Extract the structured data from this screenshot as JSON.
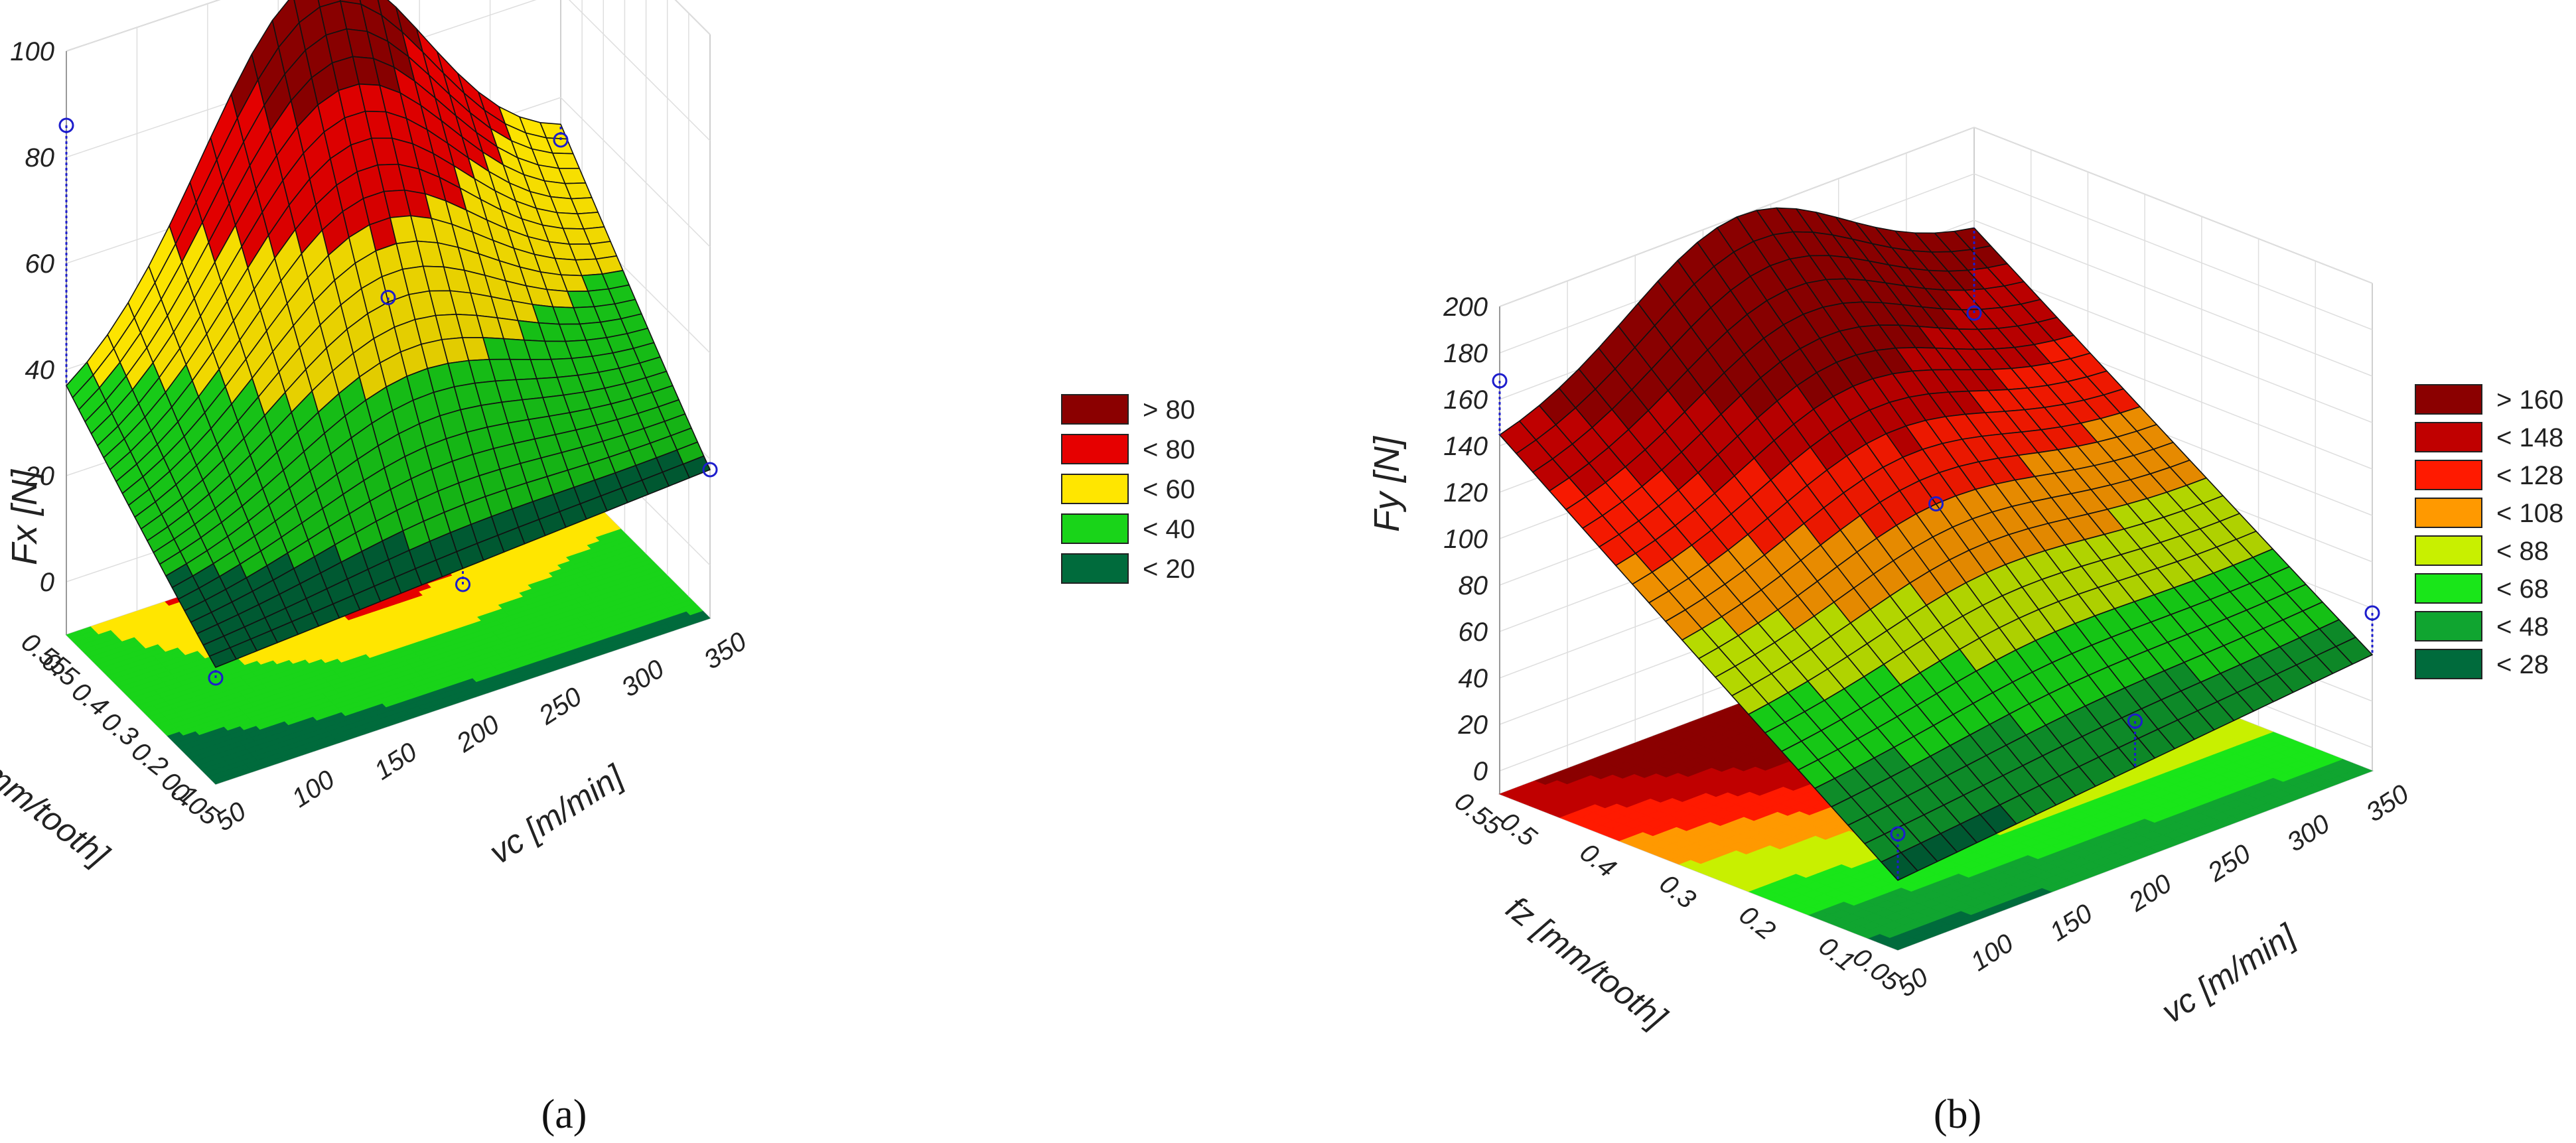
{
  "chart_data": [
    {
      "type": "surface3d",
      "panel_label": "(a)",
      "zlabel": "Fx [N]",
      "xlabel": "vc [m/min]",
      "ylabel": "fz [mm/tooth]",
      "x_ticks": [
        "50",
        "100",
        "150",
        "200",
        "250",
        "300",
        "350"
      ],
      "y_ticks": [
        "0.05",
        "0.1",
        "0.2",
        "0.3",
        "0.4",
        "0.5",
        "0.55"
      ],
      "z_ticks": [
        "0",
        "20",
        "40",
        "60",
        "80",
        "100"
      ],
      "xlim": [
        50,
        350
      ],
      "ylim": [
        0.05,
        0.55
      ],
      "zlim": [
        -10,
        100
      ],
      "legend": [
        {
          "label": "> 80",
          "color": "#8b0000"
        },
        {
          "label": "< 80",
          "color": "#e60000"
        },
        {
          "label": "< 60",
          "color": "#ffe600"
        },
        {
          "label": "< 40",
          "color": "#19d419"
        },
        {
          "label": "< 20",
          "color": "#006b3c"
        }
      ],
      "thresholds": [
        20,
        40,
        60,
        80
      ],
      "surface_corners": {
        "vc50_fz0.05": 12,
        "vc350_fz0.05": 18,
        "vc50_fz0.55": 32,
        "vc350_fz0.55": 50,
        "peak_vc200_fz0.55": 98
      },
      "observed_points": [
        {
          "vc": 50,
          "fz": 0.55,
          "F": 86
        },
        {
          "vc": 200,
          "fz": 0.3,
          "F": 52
        },
        {
          "vc": 350,
          "fz": 0.55,
          "F": 52
        },
        {
          "vc": 50,
          "fz": 0.05,
          "F": 10
        },
        {
          "vc": 200,
          "fz": 0.05,
          "F": 12
        },
        {
          "vc": 350,
          "fz": 0.05,
          "F": 18
        }
      ]
    },
    {
      "type": "surface3d",
      "panel_label": "(b)",
      "zlabel": "Fy [N]",
      "xlabel": "vc [m/min]",
      "ylabel": "fz [mm/tooth]",
      "x_ticks": [
        "50",
        "100",
        "150",
        "200",
        "250",
        "300",
        "350"
      ],
      "y_ticks": [
        "0.05",
        "0.1",
        "0.2",
        "0.3",
        "0.4",
        "0.5",
        "0.55"
      ],
      "z_ticks": [
        "0",
        "20",
        "40",
        "60",
        "80",
        "100",
        "120",
        "140",
        "160",
        "180",
        "200"
      ],
      "xlim": [
        50,
        350
      ],
      "ylim": [
        0.05,
        0.55
      ],
      "zlim": [
        -10,
        200
      ],
      "legend": [
        {
          "label": "> 160",
          "color": "#8b0000"
        },
        {
          "label": "< 148",
          "color": "#c00000"
        },
        {
          "label": "< 128",
          "color": "#ff1a00"
        },
        {
          "label": "< 108",
          "color": "#ff9900"
        },
        {
          "label": "< 88",
          "color": "#c8f000"
        },
        {
          "label": "< 68",
          "color": "#19e619"
        },
        {
          "label": "< 48",
          "color": "#10a530"
        },
        {
          "label": "< 28",
          "color": "#006b3c"
        }
      ],
      "thresholds": [
        28,
        48,
        68,
        88,
        108,
        128,
        148,
        160
      ],
      "surface_corners": {
        "vc50_fz0.05": 20,
        "vc350_fz0.05": 40,
        "vc50_fz0.55": 140,
        "vc350_fz0.55": 152,
        "peak_vc200_fz0.55": 200
      },
      "observed_points": [
        {
          "vc": 50,
          "fz": 0.55,
          "F": 168
        },
        {
          "vc": 200,
          "fz": 0.3,
          "F": 110
        },
        {
          "vc": 350,
          "fz": 0.55,
          "F": 120
        },
        {
          "vc": 50,
          "fz": 0.05,
          "F": 40
        },
        {
          "vc": 200,
          "fz": 0.05,
          "F": 50
        },
        {
          "vc": 350,
          "fz": 0.05,
          "F": 58
        }
      ]
    }
  ]
}
